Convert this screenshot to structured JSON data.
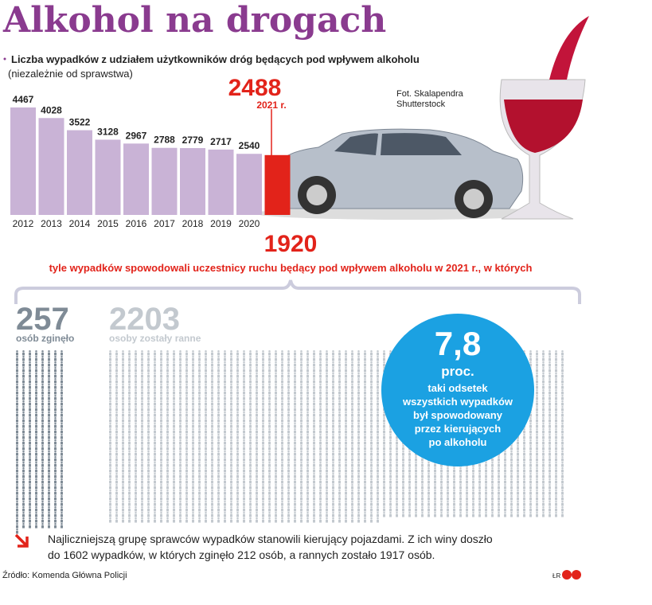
{
  "chart_data": {
    "type": "bar",
    "title": "Alkohol na drogach",
    "subtitle": "Liczba wypadków z udziałem użytkowników dróg będących pod wpływem alkoholu",
    "subtitle_note": "(niezależnie od sprawstwa)",
    "categories": [
      "2012",
      "2013",
      "2014",
      "2015",
      "2016",
      "2017",
      "2018",
      "2019",
      "2020",
      "2021 r."
    ],
    "values": [
      4467,
      4028,
      3522,
      3128,
      2967,
      2788,
      2779,
      2717,
      2540,
      2488
    ],
    "colors": [
      "#c9b3d6",
      "#c9b3d6",
      "#c9b3d6",
      "#c9b3d6",
      "#c9b3d6",
      "#c9b3d6",
      "#c9b3d6",
      "#c9b3d6",
      "#c9b3d6",
      "#e2231a"
    ],
    "photo_credit": [
      "Fot. Skalapendra",
      "Shutterstock"
    ],
    "caused": {
      "value": 1920,
      "label": "tyle wypadków spowodowali uczestnicy ruchu będący pod wpływem alkoholu w 2021 r., w których"
    },
    "killed": {
      "value": 257,
      "label": "osób zginęło"
    },
    "injured": {
      "value": 2203,
      "label": "osoby zostały ranne"
    },
    "share": {
      "value": 7.8,
      "value_label": "7,8",
      "unit": "proc.",
      "text": [
        "taki odsetek",
        "wszystkich wypadków",
        "był spowodowany",
        "przez kierujących",
        "po alkoholu"
      ]
    },
    "note": [
      "Najliczniejszą grupę sprawców wypadków stanowili kierujący pojazdami. Z ich winy doszło",
      "do 1602 wypadków, w których zginęło 212 osób, a rannych zostało 1917 osób."
    ],
    "source": "Źródło: Komenda Główna Policji",
    "author": "ŁR"
  }
}
